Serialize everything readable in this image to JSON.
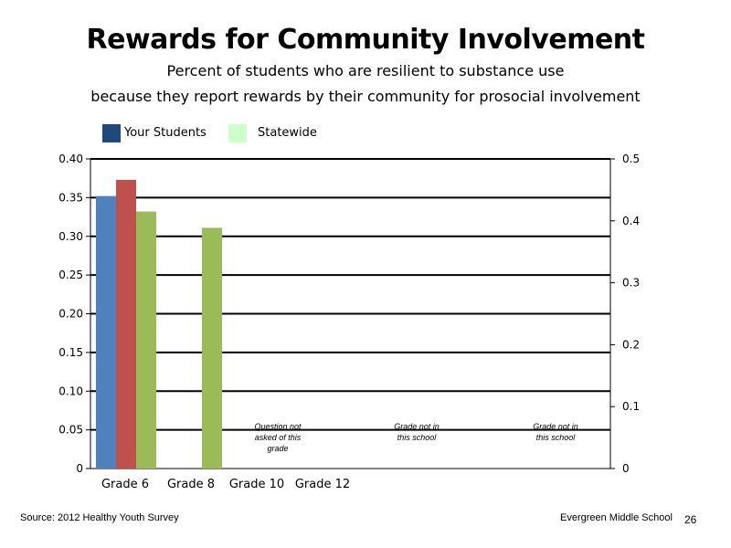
{
  "chart_data": {
    "type": "bar",
    "title": "Rewards for Community Involvement",
    "subtitle_lines": [
      "Percent of students who are resilient to substance use",
      "because they report rewards by their community for prosocial involvement"
    ],
    "categories": [
      "Grade 6",
      "Grade 8",
      "Grade 10",
      "Grade 12"
    ],
    "series": [
      {
        "color": "#4F81BD",
        "values": [
          0.352,
          null,
          null,
          null
        ]
      },
      {
        "color": "#C0504D",
        "values": [
          0.373,
          null,
          null,
          null
        ]
      },
      {
        "color": "#9BBB59",
        "values": [
          0.332,
          0.311,
          null,
          null
        ]
      }
    ],
    "legend": [
      {
        "label": "Your Students",
        "color": "#1F497D"
      },
      {
        "label": "Statewide",
        "color": "#CCFFCC"
      }
    ],
    "legend_position": "top-left",
    "ylim": [
      0,
      0.4
    ],
    "yticks": [
      "0",
      "0.05",
      "0.10",
      "0.15",
      "0.20",
      "0.25",
      "0.30",
      "0.35",
      "0.40"
    ],
    "ylim_right": [
      0,
      0.5
    ],
    "yticks_right": [
      "0",
      "0.1",
      "0.2",
      "0.3",
      "0.4",
      "0.5"
    ],
    "grid": true,
    "annotations": [
      {
        "category": "Grade 10",
        "lines": [
          "Question not",
          "asked of this",
          "grade"
        ]
      },
      {
        "category": "Grade 12",
        "lines": [
          "Grade not in",
          "this school"
        ]
      },
      {
        "category": "Grade 12",
        "lines": [
          "Grade not in",
          "this school"
        ]
      }
    ]
  },
  "footer": {
    "source": "Source: 2012 Healthy Youth Survey",
    "school": "Evergreen Middle  School",
    "page_number": "26"
  }
}
